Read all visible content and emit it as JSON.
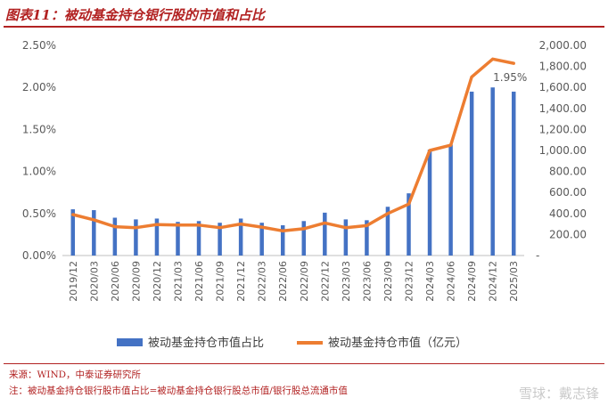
{
  "title": "图表11：被动基金持仓银行股的市值和占比",
  "footer": {
    "source": "来源：WIND，中泰证券研究所",
    "note": "注：被动基金持仓银行股市值占比=被动基金持仓银行股总市值/银行股总流通市值",
    "watermark": "雪球：戴志锋"
  },
  "chart_data": {
    "type": "bar",
    "categories": [
      "2019/12",
      "2020/03",
      "2020/06",
      "2020/09",
      "2020/12",
      "2021/03",
      "2021/06",
      "2021/09",
      "2021/12",
      "2022/03",
      "2022/06",
      "2022/09",
      "2022/12",
      "2023/03",
      "2023/06",
      "2023/09",
      "2023/12",
      "2024/03",
      "2024/06",
      "2024/09",
      "2024/12",
      "2025/03"
    ],
    "left_axis": {
      "ticks": [
        "0.00%",
        "0.50%",
        "1.00%",
        "1.50%",
        "2.00%",
        "2.50%"
      ],
      "ylim": [
        0,
        2.5
      ]
    },
    "right_axis": {
      "ticks": [
        "-",
        "200.00",
        "400.00",
        "600.00",
        "800.00",
        "1,000.00",
        "1,200.00",
        "1,400.00",
        "1,600.00",
        "1,800.00",
        "2,000.00"
      ],
      "ylim": [
        0,
        2000
      ]
    },
    "series": [
      {
        "name": "被动基金持仓市值占比",
        "type": "bar",
        "axis": "left",
        "color": "#4472c4",
        "values": [
          0.55,
          0.54,
          0.45,
          0.43,
          0.44,
          0.4,
          0.41,
          0.39,
          0.44,
          0.39,
          0.36,
          0.41,
          0.51,
          0.43,
          0.42,
          0.58,
          0.74,
          1.26,
          1.32,
          1.95,
          2.0,
          1.95
        ]
      },
      {
        "name": "被动基金持仓市值（亿元）",
        "type": "line",
        "axis": "right",
        "color": "#ed7d31",
        "values": [
          390,
          340,
          275,
          265,
          295,
          290,
          290,
          265,
          300,
          270,
          235,
          255,
          310,
          265,
          285,
          400,
          490,
          1000,
          1050,
          1700,
          1870,
          1830
        ]
      }
    ],
    "annotations": [
      {
        "text": "1.95%",
        "category": "2025/03"
      }
    ],
    "legend": "bottom",
    "grid": false
  }
}
